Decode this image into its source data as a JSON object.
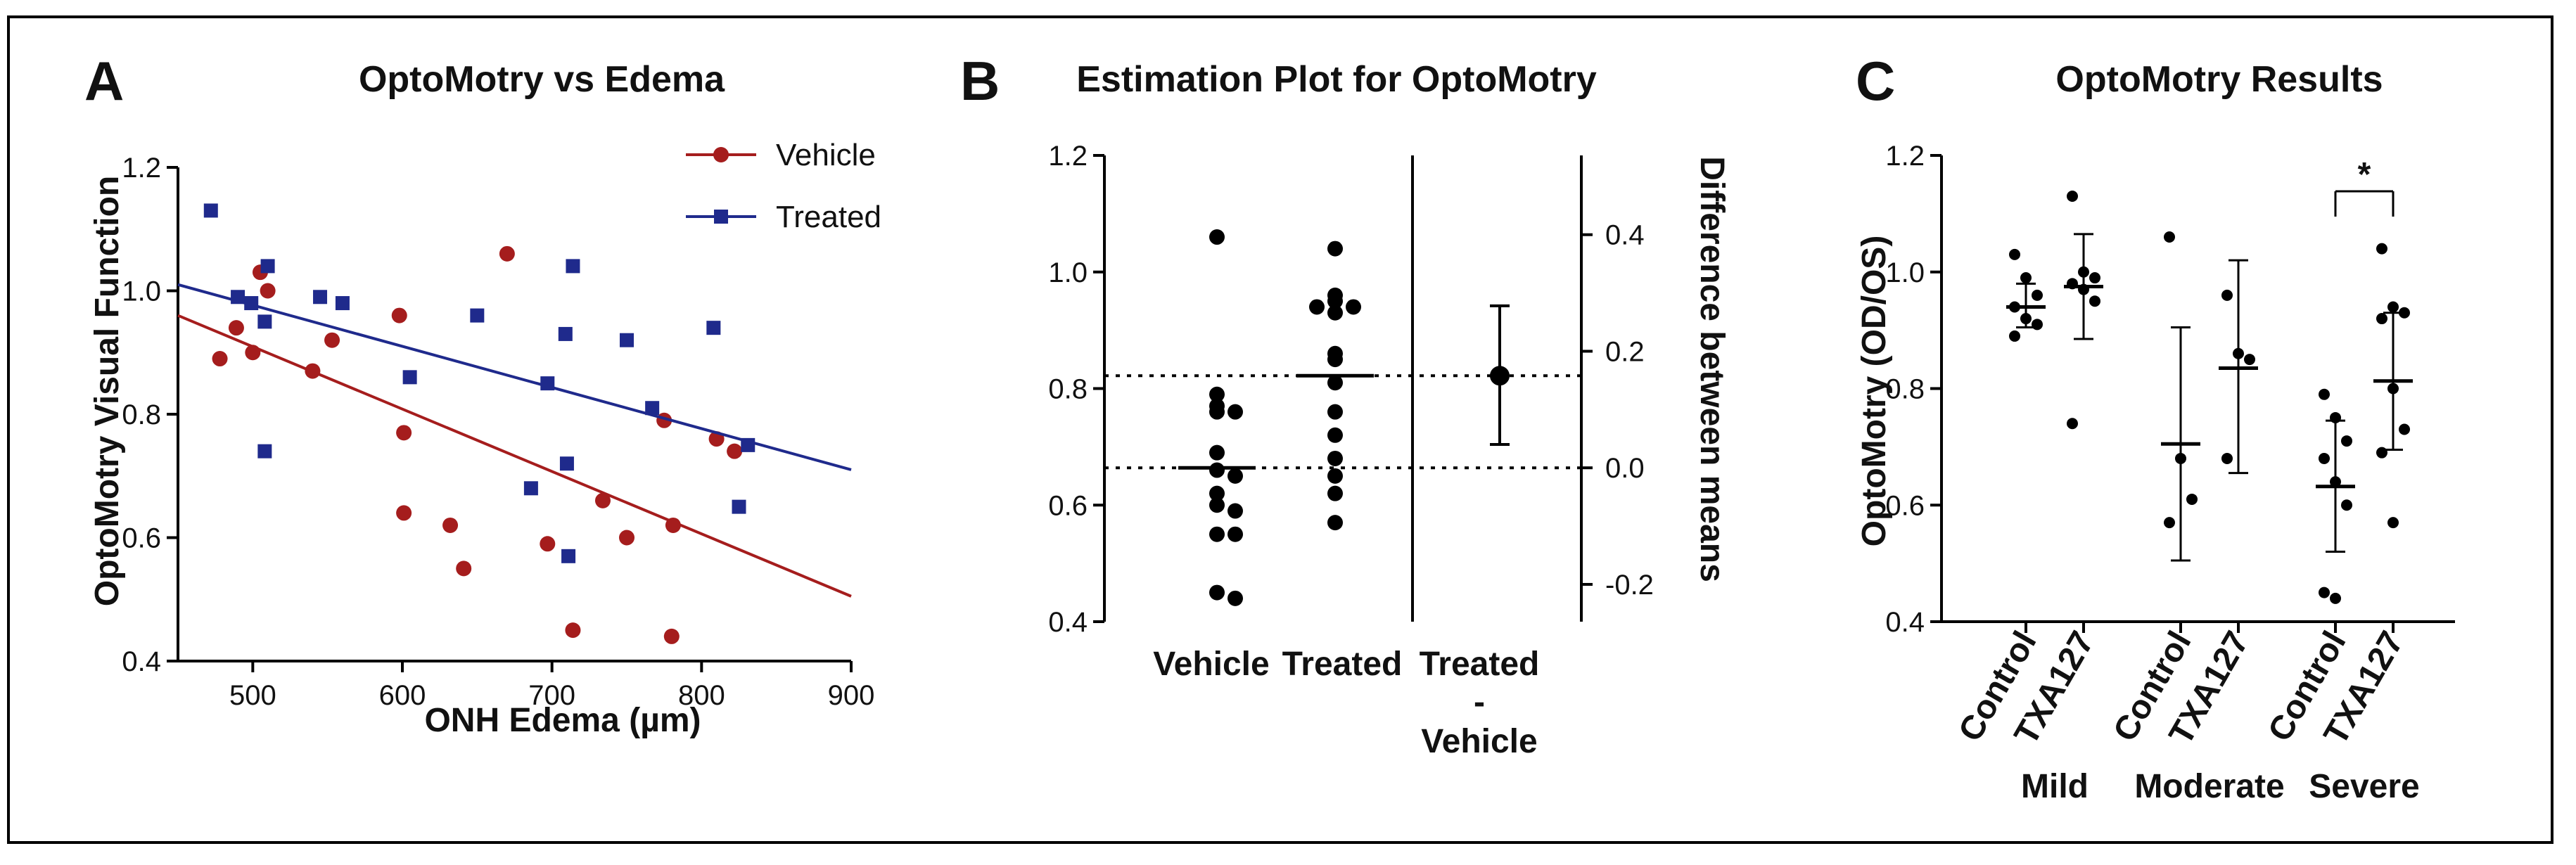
{
  "chart_data": [
    {
      "panel": "A",
      "type": "scatter",
      "title": "OptoMotry vs Edema",
      "xlabel": "ONH Edema (µm)",
      "ylabel": "OptoMotry Visual Function",
      "xlim": [
        450,
        900
      ],
      "ylim": [
        0.4,
        1.2
      ],
      "xticks": [
        "500",
        "600",
        "700",
        "800",
        "900"
      ],
      "yticks": [
        "0.4",
        "0.6",
        "0.8",
        "1.0",
        "1.2"
      ],
      "legend_position": "top-right",
      "series": [
        {
          "name": "Vehicle",
          "color": "#a51d1d",
          "marker": "circle",
          "points": [
            [
              478,
              0.89
            ],
            [
              489,
              0.94
            ],
            [
              500,
              0.9
            ],
            [
              505,
              1.03
            ],
            [
              510,
              1.0
            ],
            [
              540,
              0.87
            ],
            [
              553,
              0.92
            ],
            [
              598,
              0.96
            ],
            [
              601,
              0.77
            ],
            [
              601,
              0.64
            ],
            [
              632,
              0.62
            ],
            [
              641,
              0.55
            ],
            [
              670,
              1.06
            ],
            [
              697,
              0.59
            ],
            [
              714,
              0.45
            ],
            [
              734,
              0.66
            ],
            [
              750,
              0.6
            ],
            [
              775,
              0.79
            ],
            [
              781,
              0.62
            ],
            [
              780,
              0.44
            ],
            [
              810,
              0.76
            ],
            [
              822,
              0.74
            ]
          ],
          "fit": [
            [
              450,
              0.96
            ],
            [
              900,
              0.505
            ]
          ]
        },
        {
          "name": "Treated",
          "color": "#1f2a8c",
          "marker": "square",
          "points": [
            [
              472,
              1.13
            ],
            [
              490,
              0.99
            ],
            [
              499,
              0.98
            ],
            [
              508,
              0.95
            ],
            [
              510,
              1.04
            ],
            [
              508,
              0.74
            ],
            [
              545,
              0.99
            ],
            [
              560,
              0.98
            ],
            [
              605,
              0.86
            ],
            [
              650,
              0.96
            ],
            [
              686,
              0.68
            ],
            [
              697,
              0.85
            ],
            [
              709,
              0.93
            ],
            [
              714,
              1.04
            ],
            [
              710,
              0.72
            ],
            [
              711,
              0.57
            ],
            [
              750,
              0.92
            ],
            [
              767,
              0.81
            ],
            [
              808,
              0.94
            ],
            [
              825,
              0.65
            ],
            [
              831,
              0.75
            ]
          ],
          "fit": [
            [
              450,
              1.01
            ],
            [
              900,
              0.71
            ]
          ]
        }
      ]
    },
    {
      "panel": "B",
      "type": "scatter",
      "title": "Estimation Plot for OptoMotry",
      "ylabel_right": "Difference between means",
      "ylim": [
        0.4,
        1.2
      ],
      "yticks": [
        "0.4",
        "0.6",
        "0.8",
        "1.0",
        "1.2"
      ],
      "ylim_right": [
        -0.264,
        0.536
      ],
      "yticks_right": [
        "-0.2",
        "0.0",
        "0.2",
        "0.4"
      ],
      "categories": [
        "Vehicle",
        "Treated",
        "Treated\n-\nVehicle"
      ],
      "category_lines": [
        "Vehicle",
        "Treated",
        "Treated",
        "-",
        "Vehicle"
      ],
      "groups": [
        {
          "name": "Vehicle",
          "mean": 0.664,
          "values": [
            1.06,
            0.79,
            0.77,
            0.76,
            0.76,
            0.69,
            0.66,
            0.65,
            0.62,
            0.6,
            0.59,
            0.55,
            0.55,
            0.45,
            0.44
          ]
        },
        {
          "name": "Treated",
          "mean": 0.822,
          "values": [
            1.04,
            0.96,
            0.95,
            0.94,
            0.94,
            0.93,
            0.86,
            0.85,
            0.81,
            0.76,
            0.72,
            0.68,
            0.65,
            0.62,
            0.57
          ]
        }
      ],
      "difference": {
        "mean": 0.158,
        "ci_low": 0.04,
        "ci_high": 0.278
      }
    },
    {
      "panel": "C",
      "type": "scatter",
      "title": "OptoMotry Results",
      "ylabel": "OptoMotry (OD/OS)",
      "ylim": [
        0.4,
        1.2
      ],
      "yticks": [
        "0.4",
        "0.6",
        "0.8",
        "1.0",
        "1.2"
      ],
      "group_labels": [
        "Mild",
        "Moderate",
        "Severe"
      ],
      "significance": "*",
      "groups": [
        {
          "severity": "Mild",
          "label": "Control",
          "mean": 0.94,
          "sd_low": 0.905,
          "sd_high": 0.98,
          "values": [
            1.03,
            0.99,
            0.96,
            0.94,
            0.92,
            0.91,
            0.89
          ]
        },
        {
          "severity": "Mild",
          "label": "TXA127",
          "mean": 0.975,
          "sd_low": 0.885,
          "sd_high": 1.065,
          "values": [
            1.13,
            1.0,
            0.99,
            0.98,
            0.97,
            0.95,
            0.74
          ]
        },
        {
          "severity": "Moderate",
          "label": "Control",
          "mean": 0.705,
          "sd_low": 0.505,
          "sd_high": 0.905,
          "values": [
            1.06,
            0.68,
            0.61,
            0.57
          ]
        },
        {
          "severity": "Moderate",
          "label": "TXA127",
          "mean": 0.835,
          "sd_low": 0.655,
          "sd_high": 1.02,
          "values": [
            0.96,
            0.86,
            0.85,
            0.68
          ]
        },
        {
          "severity": "Severe",
          "label": "Control",
          "mean": 0.632,
          "sd_low": 0.52,
          "sd_high": 0.745,
          "values": [
            0.79,
            0.75,
            0.71,
            0.68,
            0.64,
            0.6,
            0.45,
            0.44
          ]
        },
        {
          "severity": "Severe",
          "label": "TXA127",
          "mean": 0.813,
          "sd_low": 0.695,
          "sd_high": 0.93,
          "values": [
            1.04,
            0.94,
            0.93,
            0.92,
            0.8,
            0.73,
            0.69,
            0.57
          ]
        }
      ]
    }
  ]
}
